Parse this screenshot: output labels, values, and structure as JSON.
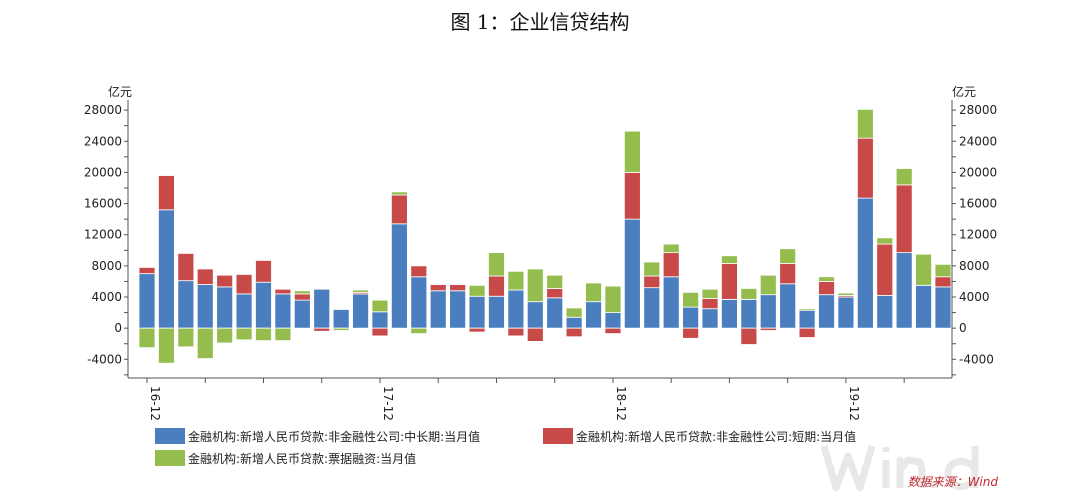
{
  "title": "图 1：企业信贷结构",
  "chart_data": {
    "type": "bar",
    "stacked": true,
    "unit_left": "亿元",
    "unit_right": "亿元",
    "ylim": [
      -6400,
      29300
    ],
    "yticks": [
      28000,
      24000,
      20000,
      16000,
      12000,
      8000,
      4000,
      0,
      -4000
    ],
    "x_tick_labels": [
      "16-12",
      "17-12",
      "18-12",
      "19-12"
    ],
    "categories": [
      "16-12",
      "17-01",
      "17-02",
      "17-03",
      "17-04",
      "17-05",
      "17-06",
      "17-07",
      "17-08",
      "17-09",
      "17-10",
      "17-11",
      "17-12",
      "18-01",
      "18-02",
      "18-03",
      "18-04",
      "18-05",
      "18-06",
      "18-07",
      "18-08",
      "18-09",
      "18-10",
      "18-11",
      "18-12",
      "19-01",
      "19-02",
      "19-03",
      "19-04",
      "19-05",
      "19-06",
      "19-07",
      "19-08",
      "19-09",
      "19-10",
      "19-11",
      "19-12",
      "20-01",
      "20-02",
      "20-03",
      "20-04",
      "20-05"
    ],
    "series": [
      {
        "name": "金融机构:新增人民币贷款:非金融性公司:中长期:当月值",
        "color": "#4a7ebf",
        "values": [
          7000,
          15200,
          6100,
          5600,
          5300,
          4400,
          5900,
          4400,
          3600,
          5000,
          2400,
          4400,
          2100,
          13400,
          6600,
          4800,
          4800,
          4100,
          4100,
          4900,
          3400,
          3900,
          1400,
          3400,
          2000,
          14000,
          5200,
          6600,
          2700,
          2500,
          3700,
          3700,
          4300,
          5700,
          2300,
          4300,
          4000,
          16700,
          4200,
          9700,
          5500,
          5300
        ]
      },
      {
        "name": "金融机构:新增人民币贷款:非金融性公司:短期:当月值",
        "color": "#c84a48",
        "values": [
          800,
          4400,
          3500,
          2000,
          1500,
          2500,
          2800,
          600,
          800,
          -400,
          0,
          200,
          -1000,
          3700,
          1400,
          800,
          800,
          -500,
          2600,
          -1000,
          -1700,
          1200,
          -1100,
          -100,
          -700,
          6000,
          1500,
          3100,
          -1300,
          1300,
          4600,
          -2100,
          -300,
          2600,
          -1200,
          1700,
          200,
          7700,
          6600,
          8700,
          0,
          1300
        ]
      },
      {
        "name": "金融机构:新增人民币贷款:票据融资:当月值",
        "color": "#94bd4e",
        "values": [
          -2500,
          -4500,
          -2400,
          -3900,
          -1900,
          -1500,
          -1600,
          -1600,
          400,
          0,
          -300,
          300,
          1500,
          400,
          -700,
          0,
          0,
          1400,
          3000,
          2400,
          4200,
          1700,
          1200,
          2400,
          3400,
          5300,
          1800,
          1100,
          1900,
          1200,
          1000,
          1400,
          2500,
          1900,
          200,
          600,
          300,
          3700,
          800,
          2100,
          4000,
          1600
        ]
      }
    ],
    "legend_position": "bottom",
    "grid": false
  },
  "source": "数据来源：Wind",
  "watermark": "Win.d"
}
